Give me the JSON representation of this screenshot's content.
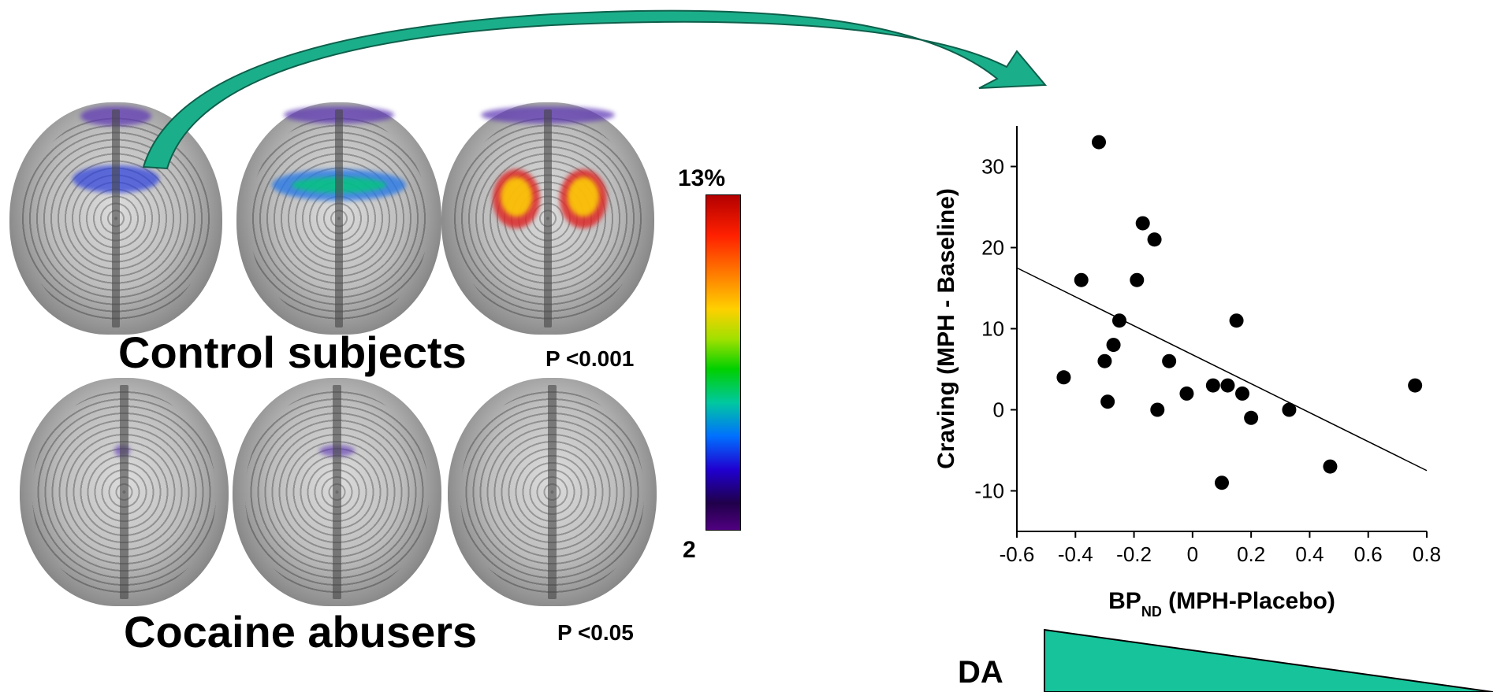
{
  "groups": {
    "control": {
      "label": "Control subjects",
      "p": "P <0.001"
    },
    "cocaine": {
      "label": "Cocaine abusers",
      "p": "P <0.05"
    }
  },
  "colorbar": {
    "max_label": "13%",
    "min_label": "2"
  },
  "colors": {
    "arrow": "#1aaf8a",
    "wedge": "#17c39a"
  },
  "da_label": "DA",
  "chart_data": {
    "type": "scatter",
    "title": "",
    "xlabel": "BP",
    "xlabel_sub": "ND",
    "xlabel_rest": " (MPH-Placebo)",
    "ylabel": "Craving (MPH - Baseline)",
    "xlim": [
      -0.6,
      0.8
    ],
    "ylim": [
      -15,
      35
    ],
    "xticks": [
      -0.6,
      -0.4,
      -0.2,
      0,
      0.2,
      0.4,
      0.6,
      0.8
    ],
    "xtick_labels": [
      "-0.6",
      "-0.4",
      "-0.2",
      "0",
      "0.2",
      "0.4",
      "0.6",
      "0.8"
    ],
    "yticks": [
      -10,
      0,
      10,
      20,
      30
    ],
    "ytick_labels": [
      "-10",
      "0",
      "10",
      "20",
      "30"
    ],
    "points": [
      {
        "x": -0.32,
        "y": 33
      },
      {
        "x": -0.44,
        "y": 4
      },
      {
        "x": -0.38,
        "y": 16
      },
      {
        "x": -0.3,
        "y": 6
      },
      {
        "x": -0.29,
        "y": 1
      },
      {
        "x": -0.27,
        "y": 8
      },
      {
        "x": -0.25,
        "y": 11
      },
      {
        "x": -0.19,
        "y": 16
      },
      {
        "x": -0.17,
        "y": 23
      },
      {
        "x": -0.13,
        "y": 21
      },
      {
        "x": -0.12,
        "y": 0
      },
      {
        "x": -0.08,
        "y": 6
      },
      {
        "x": -0.02,
        "y": 2
      },
      {
        "x": 0.07,
        "y": 3
      },
      {
        "x": 0.1,
        "y": -9
      },
      {
        "x": 0.12,
        "y": 3
      },
      {
        "x": 0.15,
        "y": 11
      },
      {
        "x": 0.17,
        "y": 2
      },
      {
        "x": 0.2,
        "y": -1
      },
      {
        "x": 0.33,
        "y": 0
      },
      {
        "x": 0.47,
        "y": -7
      },
      {
        "x": 0.76,
        "y": 3
      }
    ],
    "fit_line": {
      "x": [
        -0.6,
        0.8
      ],
      "y": [
        17.5,
        -7.5
      ]
    },
    "grid": false
  }
}
